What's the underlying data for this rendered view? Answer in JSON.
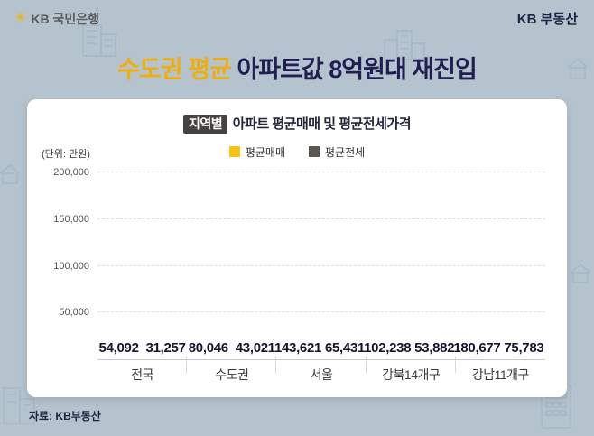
{
  "header": {
    "logo_text": "KB 국민은행",
    "brand_right": "KB 부동산"
  },
  "title": {
    "highlight": "수도권 평균",
    "rest": " 아파트값 8억원대 재진입"
  },
  "chart_card": {
    "badge": "지역별",
    "title_rest": " 아파트 평균매매 및 평균전세가격",
    "unit_label": "(단위: 만원)"
  },
  "footer": {
    "source": "자료: KB부동산"
  },
  "colors": {
    "background": "#b5c3cf",
    "title_gold": "#efae10",
    "title_navy": "#211e52",
    "sale_bar": "#f9c219",
    "jeonse_bar": "#5d564e",
    "badge_bg": "#474340"
  },
  "chart_data": {
    "type": "bar",
    "title": "지역별 아파트 평균매매 및 평균전세가격",
    "unit": "만원",
    "categories": [
      "전국",
      "수도권",
      "서울",
      "강북14개구",
      "강남11개구"
    ],
    "series": [
      {
        "name": "평균매매",
        "color": "#f9c219",
        "values": [
          54092,
          80046,
          143621,
          102238,
          180677
        ]
      },
      {
        "name": "평균전세",
        "color": "#5d564e",
        "values": [
          31257,
          43021,
          65431,
          53882,
          75783
        ]
      }
    ],
    "ylim": [
      0,
      200000
    ],
    "yticks": [
      50000,
      100000,
      150000,
      200000
    ],
    "grid": true,
    "grid_style": "dashed",
    "legend_position": "top"
  }
}
